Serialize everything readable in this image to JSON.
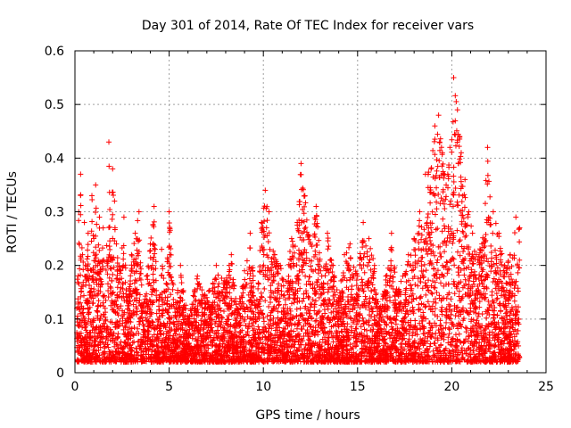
{
  "chart_data": {
    "type": "scatter",
    "title": "Day 301 of 2014, Rate Of TEC Index for receiver vars",
    "xlabel": "GPS time / hours",
    "ylabel": "ROTI / TECUs",
    "xlim": [
      0,
      25
    ],
    "ylim": [
      0,
      0.6
    ],
    "xticks": [
      0,
      5,
      10,
      15,
      20,
      25
    ],
    "yticks": [
      0,
      0.1,
      0.2,
      0.3,
      0.4,
      0.5,
      0.6
    ],
    "xtick_labels": [
      "0",
      "5",
      "10",
      "15",
      "20",
      "25"
    ],
    "ytick_labels": [
      "0",
      "0.1",
      "0.2",
      "0.3",
      "0.4",
      "0.5",
      "0.6"
    ],
    "grid": true,
    "marker": "+",
    "series": [
      {
        "name": "vars",
        "color": "#ff0000",
        "x": [
          0.1,
          0.2,
          0.3,
          0.4,
          0.5,
          0.6,
          0.7,
          0.8,
          0.9,
          1.0,
          1.1,
          1.2,
          1.3,
          1.4,
          1.5,
          1.6,
          1.8,
          1.9,
          2.0,
          2.1,
          2.2,
          2.4,
          2.6,
          2.8,
          3.0,
          3.2,
          3.4,
          3.6,
          3.8,
          4.0,
          4.2,
          4.4,
          4.6,
          4.8,
          5.0,
          5.3,
          5.6,
          6.0,
          6.5,
          7.0,
          7.5,
          8.0,
          8.3,
          8.6,
          9.0,
          9.3,
          9.6,
          9.9,
          10.1,
          10.3,
          10.6,
          10.9,
          11.2,
          11.5,
          11.8,
          12.0,
          12.2,
          12.5,
          12.8,
          13.1,
          13.4,
          13.7,
          14.0,
          14.3,
          14.6,
          15.0,
          15.3,
          15.6,
          15.9,
          16.2,
          16.5,
          16.8,
          17.1,
          17.4,
          17.7,
          18.0,
          18.3,
          18.6,
          18.9,
          19.1,
          19.3,
          19.5,
          19.7,
          19.9,
          20.1,
          20.3,
          20.5,
          20.7,
          20.9,
          21.1,
          21.3,
          21.6,
          21.9,
          22.2,
          22.5,
          22.8,
          23.1,
          23.4,
          23.6
        ],
        "y": [
          0.12,
          0.3,
          0.37,
          0.22,
          0.28,
          0.18,
          0.26,
          0.15,
          0.33,
          0.25,
          0.35,
          0.2,
          0.29,
          0.17,
          0.27,
          0.12,
          0.43,
          0.21,
          0.38,
          0.32,
          0.24,
          0.19,
          0.29,
          0.14,
          0.22,
          0.26,
          0.3,
          0.12,
          0.18,
          0.24,
          0.31,
          0.1,
          0.23,
          0.14,
          0.3,
          0.12,
          0.2,
          0.1,
          0.18,
          0.14,
          0.2,
          0.17,
          0.22,
          0.12,
          0.19,
          0.26,
          0.12,
          0.28,
          0.34,
          0.3,
          0.22,
          0.2,
          0.17,
          0.25,
          0.28,
          0.39,
          0.33,
          0.24,
          0.31,
          0.18,
          0.26,
          0.2,
          0.14,
          0.22,
          0.24,
          0.18,
          0.28,
          0.25,
          0.2,
          0.12,
          0.18,
          0.26,
          0.15,
          0.18,
          0.22,
          0.25,
          0.3,
          0.37,
          0.38,
          0.46,
          0.48,
          0.41,
          0.35,
          0.42,
          0.55,
          0.49,
          0.41,
          0.36,
          0.3,
          0.26,
          0.22,
          0.24,
          0.42,
          0.3,
          0.26,
          0.2,
          0.22,
          0.29,
          0.27
        ]
      }
    ]
  }
}
